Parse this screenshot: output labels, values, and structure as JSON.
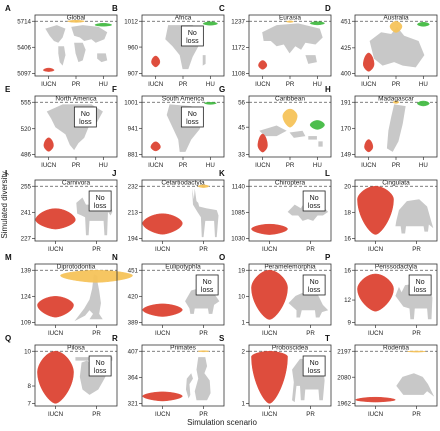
{
  "figure": {
    "ylabel": "Simulated diversity",
    "xlabel": "Simulation scenario",
    "no_loss_label": [
      "No",
      "loss"
    ]
  },
  "colors": {
    "iucn": "#dd4433",
    "pr": "#f6c35a",
    "hu": "#44bb44",
    "silhouette": "#c8c8c8",
    "dashed": "#555555",
    "frame": "#333333"
  },
  "chart_data": [
    {
      "type": "violin",
      "letter": "A",
      "title": "Global",
      "categories": [
        "IUCN",
        "PR",
        "HU"
      ],
      "yticks": [
        5097,
        5406,
        5714
      ],
      "ylim": [
        5097,
        5714
      ],
      "reference": 5714,
      "series": [
        {
          "name": "IUCN",
          "center": 5135,
          "half_width": 0.09,
          "span": [
            5118,
            5160
          ]
        },
        {
          "name": "PR",
          "center": 5714,
          "half_width": 0.14,
          "span": [
            5700,
            5726
          ]
        },
        {
          "name": "HU",
          "center": 5670,
          "half_width": 0.14,
          "span": [
            5655,
            5690
          ]
        }
      ],
      "no_loss": false,
      "silhouette": "world-map-icon"
    },
    {
      "type": "violin",
      "letter": "B",
      "title": "Africa",
      "categories": [
        "IUCN",
        "PR",
        "HU"
      ],
      "yticks": [
        907,
        960,
        1012
      ],
      "ylim": [
        907,
        1012
      ],
      "reference": 1012,
      "series": [
        {
          "name": "IUCN",
          "center": 930,
          "half_width": 0.07,
          "span": [
            920,
            942
          ]
        },
        {
          "name": "HU",
          "center": 1007,
          "half_width": 0.12,
          "span": [
            1004,
            1011
          ]
        }
      ],
      "no_loss": true,
      "silhouette": "africa-map-icon"
    },
    {
      "type": "violin",
      "letter": "C",
      "title": "Eurasia",
      "categories": [
        "IUCN",
        "PR",
        "HU"
      ],
      "yticks": [
        1108,
        1172,
        1237
      ],
      "ylim": [
        1108,
        1237
      ],
      "reference": 1237,
      "series": [
        {
          "name": "IUCN",
          "center": 1128,
          "half_width": 0.07,
          "span": [
            1118,
            1140
          ]
        },
        {
          "name": "PR",
          "center": 1236,
          "half_width": 0.06,
          "span": [
            1234,
            1238
          ]
        },
        {
          "name": "HU",
          "center": 1232,
          "half_width": 0.12,
          "span": [
            1228,
            1236
          ]
        }
      ],
      "no_loss": false,
      "silhouette": "eurasia-map-icon"
    },
    {
      "type": "violin",
      "letter": "D",
      "title": "Australia",
      "categories": [
        "IUCN",
        "PR",
        "HU"
      ],
      "yticks": [
        400,
        425,
        451
      ],
      "ylim": [
        400,
        451
      ],
      "reference": 451,
      "series": [
        {
          "name": "IUCN",
          "center": 409,
          "half_width": 0.09,
          "span": [
            402,
            420
          ]
        },
        {
          "name": "PR",
          "center": 446,
          "half_width": 0.1,
          "span": [
            440,
            451
          ]
        },
        {
          "name": "HU",
          "center": 448,
          "half_width": 0.1,
          "span": [
            446,
            450
          ]
        }
      ],
      "no_loss": false,
      "silhouette": "australia-map-icon"
    },
    {
      "type": "violin",
      "letter": "E",
      "title": "North America",
      "categories": [
        "IUCN",
        "PR",
        "HU"
      ],
      "yticks": [
        486,
        520,
        555
      ],
      "ylim": [
        486,
        555
      ],
      "reference": 555,
      "series": [
        {
          "name": "IUCN",
          "center": 498,
          "half_width": 0.08,
          "span": [
            490,
            508
          ]
        }
      ],
      "no_loss": true,
      "silhouette": "north-america-map-icon"
    },
    {
      "type": "violin",
      "letter": "F",
      "title": "South America",
      "categories": [
        "IUCN",
        "PR",
        "HU"
      ],
      "yticks": [
        881,
        941,
        1001
      ],
      "ylim": [
        881,
        1001
      ],
      "reference": 1001,
      "series": [
        {
          "name": "IUCN",
          "center": 898,
          "half_width": 0.08,
          "span": [
            889,
            910
          ]
        },
        {
          "name": "HU",
          "center": 999,
          "half_width": 0.1,
          "span": [
            996,
            1001
          ]
        }
      ],
      "no_loss": true,
      "silhouette": "south-america-map-icon"
    },
    {
      "type": "violin",
      "letter": "G",
      "title": "Caribbean",
      "categories": [
        "IUCN",
        "PR",
        "HU"
      ],
      "yticks": [
        33,
        45,
        56
      ],
      "ylim": [
        33,
        56
      ],
      "reference": 56,
      "series": [
        {
          "name": "IUCN",
          "center": 37,
          "half_width": 0.08,
          "span": [
            34,
            42
          ]
        },
        {
          "name": "PR",
          "center": 50,
          "half_width": 0.12,
          "span": [
            45,
            53
          ]
        },
        {
          "name": "HU",
          "center": 46,
          "half_width": 0.12,
          "span": [
            44,
            48
          ]
        }
      ],
      "no_loss": false,
      "silhouette": "caribbean-map-icon"
    },
    {
      "type": "violin",
      "letter": "H",
      "title": "Madagascar",
      "categories": [
        "IUCN",
        "PR",
        "HU"
      ],
      "yticks": [
        149,
        170,
        191
      ],
      "ylim": [
        149,
        191
      ],
      "reference": 191,
      "series": [
        {
          "name": "IUCN",
          "center": 155,
          "half_width": 0.07,
          "span": [
            151,
            161
          ]
        },
        {
          "name": "PR",
          "center": 191,
          "half_width": 0.05,
          "span": [
            190,
            192
          ]
        },
        {
          "name": "HU",
          "center": 190,
          "half_width": 0.1,
          "span": [
            188,
            192
          ]
        }
      ],
      "no_loss": false,
      "silhouette": "madagascar-map-icon"
    },
    {
      "type": "violin",
      "letter": "I",
      "title": "Carnivora",
      "categories": [
        "IUCN",
        "PR"
      ],
      "yticks": [
        227,
        241,
        255
      ],
      "ylim": [
        227,
        255
      ],
      "reference": 255,
      "series": [
        {
          "name": "IUCN",
          "center": 237,
          "half_width": 0.22,
          "span": [
            232,
            243
          ]
        }
      ],
      "no_loss": true,
      "silhouette": "lion-silhouette-icon"
    },
    {
      "type": "violin",
      "letter": "J",
      "title": "Cetartiodactyla",
      "categories": [
        "IUCN",
        "PR"
      ],
      "yticks": [
        194,
        213,
        232
      ],
      "ylim": [
        194,
        232
      ],
      "reference": 232,
      "series": [
        {
          "name": "IUCN",
          "center": 205,
          "half_width": 0.22,
          "span": [
            197,
            212
          ]
        },
        {
          "name": "PR",
          "center": 232,
          "half_width": 0.06,
          "span": [
            231,
            233
          ]
        }
      ],
      "no_loss": false,
      "silhouette": "antelope-silhouette-icon"
    },
    {
      "type": "violin",
      "letter": "K",
      "title": "Chiroptera",
      "categories": [
        "IUCN",
        "PR"
      ],
      "yticks": [
        1030,
        1085,
        1140
      ],
      "ylim": [
        1030,
        1140
      ],
      "reference": 1140,
      "series": [
        {
          "name": "IUCN",
          "center": 1050,
          "half_width": 0.2,
          "span": [
            1038,
            1060
          ]
        }
      ],
      "no_loss": true,
      "silhouette": "bat-silhouette-icon"
    },
    {
      "type": "violin",
      "letter": "L",
      "title": "Cingulata",
      "categories": [
        "IUCN",
        "PR"
      ],
      "yticks": [
        16,
        18,
        20
      ],
      "ylim": [
        16,
        20
      ],
      "reference": 20,
      "series": [
        {
          "name": "IUCN",
          "center": 19,
          "half_width": 0.2,
          "span": [
            16.3,
            20
          ]
        }
      ],
      "no_loss": false,
      "silhouette": "armadillo-silhouette-icon"
    },
    {
      "type": "violin",
      "letter": "M",
      "title": "Diprotodontia",
      "categories": [
        "IUCN",
        "PR"
      ],
      "yticks": [
        109,
        124,
        139
      ],
      "ylim": [
        109,
        139
      ],
      "reference": 139,
      "series": [
        {
          "name": "IUCN",
          "center": 119,
          "half_width": 0.2,
          "span": [
            112,
            124
          ]
        },
        {
          "name": "PR",
          "center": 136,
          "half_width": 0.4,
          "span": [
            132,
            139
          ]
        }
      ],
      "no_loss": false,
      "silhouette": "kangaroo-silhouette-icon"
    },
    {
      "type": "violin",
      "letter": "N",
      "title": "Eulipotyphla",
      "categories": [
        "IUCN",
        "PR"
      ],
      "yticks": [
        389,
        420,
        451
      ],
      "ylim": [
        389,
        451
      ],
      "reference": 451,
      "series": [
        {
          "name": "IUCN",
          "center": 404,
          "half_width": 0.22,
          "span": [
            396,
            411
          ]
        }
      ],
      "no_loss": true,
      "silhouette": "shrew-silhouette-icon"
    },
    {
      "type": "violin",
      "letter": "O",
      "title": "Peramelemorphia",
      "categories": [
        "IUCN",
        "PR"
      ],
      "yticks": [
        1,
        10,
        19
      ],
      "ylim": [
        1,
        19
      ],
      "reference": 19,
      "series": [
        {
          "name": "IUCN",
          "center": 13,
          "half_width": 0.2,
          "span": [
            2,
            19
          ]
        }
      ],
      "no_loss": true,
      "silhouette": "bandicoot-silhouette-icon"
    },
    {
      "type": "violin",
      "letter": "P",
      "title": "Perissodactyla",
      "categories": [
        "IUCN",
        "PR"
      ],
      "yticks": [
        9,
        12,
        16
      ],
      "ylim": [
        9,
        16
      ],
      "reference": 16,
      "series": [
        {
          "name": "IUCN",
          "center": 13.5,
          "half_width": 0.2,
          "span": [
            10.5,
            15.5
          ]
        }
      ],
      "no_loss": true,
      "silhouette": "rhino-silhouette-icon"
    },
    {
      "type": "violin",
      "letter": "Q",
      "title": "Pilosa",
      "categories": [
        "IUCN",
        "PR"
      ],
      "yticks": [
        7,
        8,
        10
      ],
      "ylim": [
        7,
        10
      ],
      "reference": 10,
      "series": [
        {
          "name": "IUCN",
          "center": 8.8,
          "half_width": 0.2,
          "span": [
            7,
            10
          ]
        }
      ],
      "no_loss": true,
      "silhouette": "sloth-silhouette-icon"
    },
    {
      "type": "violin",
      "letter": "R",
      "title": "Primates",
      "categories": [
        "IUCN",
        "PR"
      ],
      "yticks": [
        321,
        364,
        407
      ],
      "ylim": [
        321,
        407
      ],
      "reference": 407,
      "series": [
        {
          "name": "IUCN",
          "center": 333,
          "half_width": 0.22,
          "span": [
            325,
            340
          ]
        },
        {
          "name": "PR",
          "center": 407,
          "half_width": 0.06,
          "span": [
            406,
            408
          ]
        }
      ],
      "no_loss": false,
      "silhouette": "monkey-silhouette-icon"
    },
    {
      "type": "violin",
      "letter": "S",
      "title": "Proboscidea",
      "categories": [
        "IUCN",
        "PR"
      ],
      "yticks": [
        1,
        2
      ],
      "ylim": [
        1,
        2
      ],
      "reference": 2,
      "series": [
        {
          "name": "IUCN",
          "center": 1.9,
          "half_width": 0.2,
          "span": [
            1,
            2
          ]
        }
      ],
      "no_loss": true,
      "silhouette": "elephant-silhouette-icon"
    },
    {
      "type": "violin",
      "letter": "T",
      "title": "Rodentia",
      "categories": [
        "IUCN",
        "PR"
      ],
      "yticks": [
        1962,
        2080,
        2197
      ],
      "ylim": [
        1962,
        2197
      ],
      "reference": 2197,
      "series": [
        {
          "name": "IUCN",
          "center": 1978,
          "half_width": 0.22,
          "span": [
            1968,
            1990
          ]
        },
        {
          "name": "PR",
          "center": 2196,
          "half_width": 0.1,
          "span": [
            2193,
            2198
          ]
        }
      ],
      "no_loss": false,
      "silhouette": "rat-silhouette-icon"
    }
  ]
}
